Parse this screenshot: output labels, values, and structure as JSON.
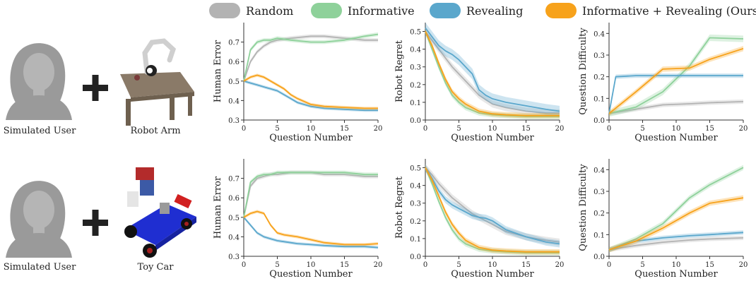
{
  "colors": {
    "random": "#b3b3b3",
    "informative": "#8ed19a",
    "revealing": "#5aa7cc",
    "ours": "#f7a21b"
  },
  "legend": [
    {
      "key": "random",
      "label": "Random"
    },
    {
      "key": "informative",
      "label": "Informative"
    },
    {
      "key": "revealing",
      "label": "Revealing"
    },
    {
      "key": "ours",
      "label": "Informative + Revealing (Ours)"
    }
  ],
  "rows": [
    {
      "user_label": "Simulated User",
      "plus_icon": "plus-icon",
      "robot_label": "Robot Arm",
      "robot_icon": "robot-arm-image"
    },
    {
      "user_label": "Simulated User",
      "plus_icon": "plus-icon",
      "robot_label": "Toy Car",
      "robot_icon": "toy-car-image"
    }
  ],
  "chart_data": [
    {
      "type": "line",
      "row": 0,
      "col": 0,
      "ylabel": "Human Error",
      "xlabel": "Question Number",
      "xlim": [
        0,
        20
      ],
      "ylim": [
        0.3,
        0.8
      ],
      "yticks": [
        0.3,
        0.4,
        0.5,
        0.6,
        0.7
      ],
      "xticks": [
        0,
        5,
        10,
        15,
        20
      ],
      "series": [
        {
          "key": "random",
          "x": [
            0,
            1,
            2,
            3,
            4,
            5,
            7,
            10,
            12,
            15,
            18,
            20
          ],
          "y": [
            0.5,
            0.6,
            0.65,
            0.68,
            0.7,
            0.71,
            0.72,
            0.73,
            0.73,
            0.72,
            0.71,
            0.71
          ],
          "band": 0.01
        },
        {
          "key": "informative",
          "x": [
            0,
            1,
            2,
            3,
            4,
            5,
            7,
            10,
            12,
            15,
            18,
            20
          ],
          "y": [
            0.5,
            0.66,
            0.7,
            0.71,
            0.71,
            0.72,
            0.71,
            0.7,
            0.7,
            0.71,
            0.73,
            0.74
          ],
          "band": 0.01
        },
        {
          "key": "revealing",
          "x": [
            0,
            1,
            2,
            3,
            4,
            5,
            6,
            7,
            8,
            10,
            12,
            15,
            18,
            20
          ],
          "y": [
            0.5,
            0.49,
            0.48,
            0.47,
            0.46,
            0.45,
            0.43,
            0.41,
            0.39,
            0.37,
            0.36,
            0.355,
            0.35,
            0.35
          ],
          "band": 0.008
        },
        {
          "key": "ours",
          "x": [
            0,
            1,
            2,
            3,
            4,
            5,
            6,
            7,
            8,
            10,
            12,
            15,
            18,
            20
          ],
          "y": [
            0.5,
            0.52,
            0.53,
            0.52,
            0.5,
            0.48,
            0.46,
            0.43,
            0.41,
            0.38,
            0.37,
            0.365,
            0.36,
            0.36
          ],
          "band": 0.008
        }
      ]
    },
    {
      "type": "line",
      "row": 0,
      "col": 1,
      "ylabel": "Robot Regret",
      "xlabel": "Question Number",
      "xlim": [
        0,
        20
      ],
      "ylim": [
        0,
        0.55
      ],
      "yticks": [
        0.0,
        0.1,
        0.2,
        0.3,
        0.4,
        0.5
      ],
      "xticks": [
        0,
        5,
        10,
        15,
        20
      ],
      "series": [
        {
          "key": "random",
          "x": [
            0,
            1,
            2,
            3,
            4,
            5,
            6,
            7,
            8,
            10,
            12,
            15,
            18,
            20
          ],
          "y": [
            0.5,
            0.45,
            0.4,
            0.35,
            0.3,
            0.26,
            0.22,
            0.18,
            0.14,
            0.09,
            0.07,
            0.05,
            0.04,
            0.04
          ],
          "band": 0.02
        },
        {
          "key": "informative",
          "x": [
            0,
            1,
            2,
            3,
            4,
            5,
            6,
            8,
            10,
            12,
            15,
            20
          ],
          "y": [
            0.5,
            0.4,
            0.3,
            0.21,
            0.14,
            0.1,
            0.07,
            0.04,
            0.03,
            0.025,
            0.02,
            0.02
          ],
          "band": 0.015
        },
        {
          "key": "revealing",
          "x": [
            0,
            1,
            2,
            3,
            4,
            5,
            6,
            7,
            8,
            9,
            10,
            12,
            15,
            18,
            20
          ],
          "y": [
            0.52,
            0.47,
            0.42,
            0.39,
            0.37,
            0.34,
            0.3,
            0.26,
            0.17,
            0.14,
            0.12,
            0.1,
            0.08,
            0.06,
            0.05
          ],
          "band": 0.03
        },
        {
          "key": "ours",
          "x": [
            0,
            1,
            2,
            3,
            4,
            5,
            6,
            8,
            10,
            12,
            15,
            20
          ],
          "y": [
            0.5,
            0.42,
            0.32,
            0.23,
            0.16,
            0.12,
            0.09,
            0.05,
            0.035,
            0.03,
            0.025,
            0.025
          ],
          "band": 0.015
        }
      ]
    },
    {
      "type": "line",
      "row": 0,
      "col": 2,
      "ylabel": "Question Difficulty",
      "xlabel": "Question Number",
      "xlim": [
        0,
        20
      ],
      "ylim": [
        0,
        0.45
      ],
      "yticks": [
        0.0,
        0.1,
        0.2,
        0.3,
        0.4
      ],
      "xticks": [
        0,
        5,
        10,
        15,
        20
      ],
      "series": [
        {
          "key": "random",
          "x": [
            0,
            4,
            8,
            12,
            15,
            20
          ],
          "y": [
            0.03,
            0.05,
            0.07,
            0.075,
            0.08,
            0.085
          ],
          "band": 0.01
        },
        {
          "key": "informative",
          "x": [
            0,
            4,
            8,
            12,
            15,
            20
          ],
          "y": [
            0.03,
            0.06,
            0.13,
            0.25,
            0.38,
            0.375
          ],
          "band": 0.015
        },
        {
          "key": "revealing",
          "x": [
            0,
            1,
            4,
            8,
            12,
            15,
            20
          ],
          "y": [
            0.03,
            0.2,
            0.205,
            0.205,
            0.205,
            0.205,
            0.205
          ],
          "band": 0.01
        },
        {
          "key": "ours",
          "x": [
            0,
            4,
            8,
            12,
            15,
            20
          ],
          "y": [
            0.03,
            0.13,
            0.235,
            0.24,
            0.28,
            0.33
          ],
          "band": 0.012
        }
      ]
    },
    {
      "type": "line",
      "row": 1,
      "col": 0,
      "ylabel": "Human Error",
      "xlabel": "Question Number",
      "xlim": [
        0,
        20
      ],
      "ylim": [
        0.3,
        0.8
      ],
      "yticks": [
        0.3,
        0.4,
        0.5,
        0.6,
        0.7
      ],
      "xticks": [
        0,
        5,
        10,
        15,
        20
      ],
      "series": [
        {
          "key": "random",
          "x": [
            0,
            1,
            2,
            3,
            4,
            5,
            7,
            10,
            12,
            15,
            18,
            20
          ],
          "y": [
            0.5,
            0.66,
            0.7,
            0.71,
            0.72,
            0.72,
            0.73,
            0.73,
            0.72,
            0.72,
            0.71,
            0.71
          ],
          "band": 0.01
        },
        {
          "key": "informative",
          "x": [
            0,
            1,
            2,
            3,
            4,
            5,
            7,
            10,
            12,
            15,
            18,
            20
          ],
          "y": [
            0.5,
            0.68,
            0.71,
            0.72,
            0.72,
            0.73,
            0.73,
            0.73,
            0.73,
            0.73,
            0.72,
            0.72
          ],
          "band": 0.01
        },
        {
          "key": "revealing",
          "x": [
            0,
            1,
            2,
            3,
            4,
            5,
            6,
            7,
            8,
            10,
            12,
            15,
            18,
            20
          ],
          "y": [
            0.5,
            0.46,
            0.42,
            0.4,
            0.39,
            0.38,
            0.375,
            0.37,
            0.365,
            0.36,
            0.355,
            0.35,
            0.35,
            0.345
          ],
          "band": 0.008
        },
        {
          "key": "ours",
          "x": [
            0,
            1,
            2,
            3,
            4,
            5,
            6,
            7,
            8,
            10,
            12,
            15,
            18,
            20
          ],
          "y": [
            0.5,
            0.52,
            0.53,
            0.52,
            0.46,
            0.42,
            0.41,
            0.405,
            0.4,
            0.385,
            0.37,
            0.36,
            0.36,
            0.365
          ],
          "band": 0.008
        }
      ]
    },
    {
      "type": "line",
      "row": 1,
      "col": 1,
      "ylabel": "Robot Regret",
      "xlabel": "Question Number",
      "xlim": [
        0,
        20
      ],
      "ylim": [
        0,
        0.55
      ],
      "yticks": [
        0.0,
        0.1,
        0.2,
        0.3,
        0.4,
        0.5
      ],
      "xticks": [
        0,
        5,
        10,
        15,
        20
      ],
      "series": [
        {
          "key": "random",
          "x": [
            0,
            1,
            2,
            3,
            4,
            5,
            6,
            7,
            8,
            10,
            12,
            15,
            18,
            20
          ],
          "y": [
            0.5,
            0.46,
            0.41,
            0.37,
            0.33,
            0.3,
            0.27,
            0.24,
            0.22,
            0.18,
            0.14,
            0.11,
            0.09,
            0.08
          ],
          "band": 0.02
        },
        {
          "key": "informative",
          "x": [
            0,
            1,
            2,
            3,
            4,
            5,
            6,
            8,
            10,
            12,
            15,
            20
          ],
          "y": [
            0.5,
            0.41,
            0.31,
            0.22,
            0.15,
            0.1,
            0.07,
            0.04,
            0.03,
            0.025,
            0.02,
            0.02
          ],
          "band": 0.015
        },
        {
          "key": "revealing",
          "x": [
            0,
            1,
            2,
            3,
            4,
            5,
            6,
            7,
            8,
            9,
            10,
            12,
            15,
            18,
            20
          ],
          "y": [
            0.5,
            0.44,
            0.37,
            0.32,
            0.29,
            0.27,
            0.25,
            0.23,
            0.22,
            0.215,
            0.2,
            0.15,
            0.11,
            0.08,
            0.07
          ],
          "band": 0.02
        },
        {
          "key": "ours",
          "x": [
            0,
            1,
            2,
            3,
            4,
            5,
            6,
            8,
            10,
            12,
            15,
            20
          ],
          "y": [
            0.5,
            0.43,
            0.34,
            0.25,
            0.18,
            0.13,
            0.09,
            0.05,
            0.035,
            0.03,
            0.025,
            0.025
          ],
          "band": 0.015
        }
      ]
    },
    {
      "type": "line",
      "row": 1,
      "col": 2,
      "ylabel": "Question Difficulty",
      "xlabel": "Question Number",
      "xlim": [
        0,
        20
      ],
      "ylim": [
        0,
        0.45
      ],
      "yticks": [
        0.0,
        0.1,
        0.2,
        0.3,
        0.4
      ],
      "xticks": [
        0,
        5,
        10,
        15,
        20
      ],
      "series": [
        {
          "key": "random",
          "x": [
            0,
            4,
            8,
            12,
            15,
            20
          ],
          "y": [
            0.03,
            0.05,
            0.065,
            0.075,
            0.08,
            0.085
          ],
          "band": 0.01
        },
        {
          "key": "informative",
          "x": [
            0,
            4,
            8,
            12,
            15,
            20
          ],
          "y": [
            0.03,
            0.08,
            0.15,
            0.27,
            0.33,
            0.41
          ],
          "band": 0.012
        },
        {
          "key": "revealing",
          "x": [
            0,
            4,
            8,
            12,
            15,
            20
          ],
          "y": [
            0.03,
            0.07,
            0.085,
            0.095,
            0.1,
            0.11
          ],
          "band": 0.01
        },
        {
          "key": "ours",
          "x": [
            0,
            4,
            8,
            12,
            15,
            20
          ],
          "y": [
            0.03,
            0.07,
            0.13,
            0.2,
            0.245,
            0.27
          ],
          "band": 0.012
        }
      ]
    }
  ]
}
